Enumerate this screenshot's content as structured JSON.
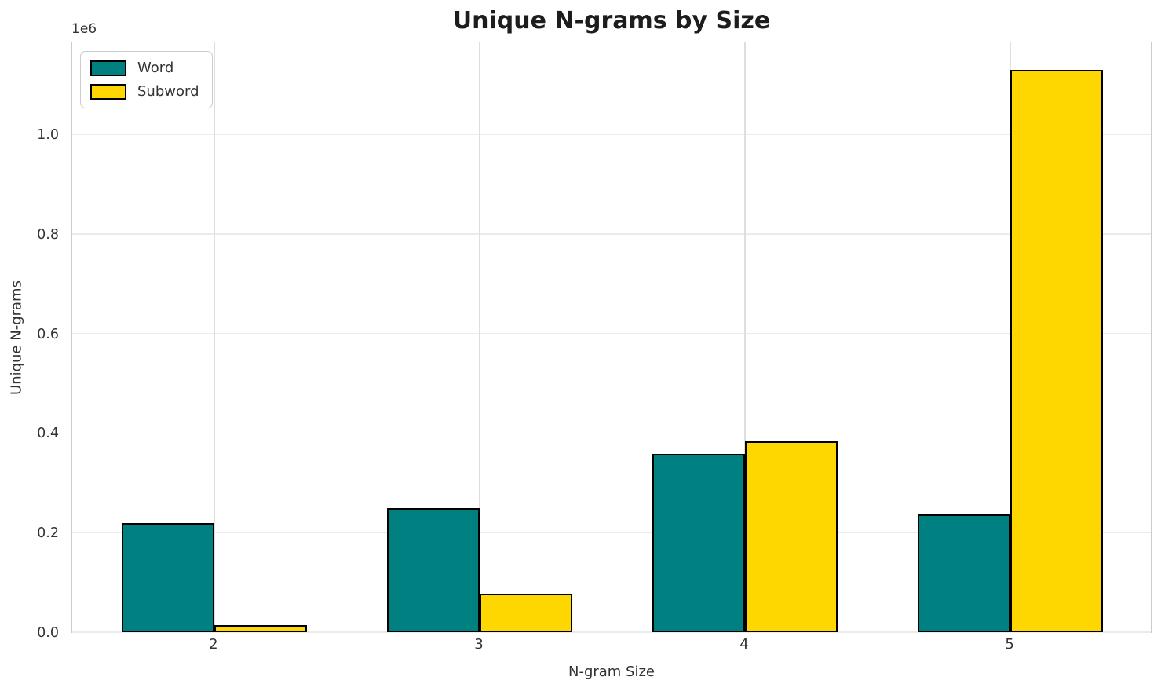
{
  "title": "Unique N-grams by Size",
  "chart_data": {
    "type": "bar",
    "title": "Unique N-grams by Size",
    "xlabel": "N-gram Size",
    "ylabel": "Unique N-grams",
    "y_offset_text": "1e6",
    "categories": [
      "2",
      "3",
      "4",
      "5"
    ],
    "series": [
      {
        "name": "Word",
        "color": "#008080",
        "values": [
          220000,
          250000,
          358000,
          236000
        ]
      },
      {
        "name": "Subword",
        "color": "#FFD700",
        "values": [
          14000,
          78000,
          383000,
          1130000
        ]
      }
    ],
    "bar_edge_color": "#000000",
    "bar_width_units": 0.35,
    "x_units_min": -0.535,
    "x_units_max": 3.535,
    "ylim": [
      0,
      1188000
    ],
    "yticks": [
      0,
      200000,
      400000,
      600000,
      800000,
      1000000
    ],
    "ytick_labels": [
      "0.0",
      "0.2",
      "0.4",
      "0.6",
      "0.8",
      "1.0"
    ],
    "grid": true,
    "legend_position": "upper left"
  },
  "legend": {
    "items": [
      {
        "label": "Word",
        "color": "#008080"
      },
      {
        "label": "Subword",
        "color": "#FFD700"
      }
    ]
  }
}
